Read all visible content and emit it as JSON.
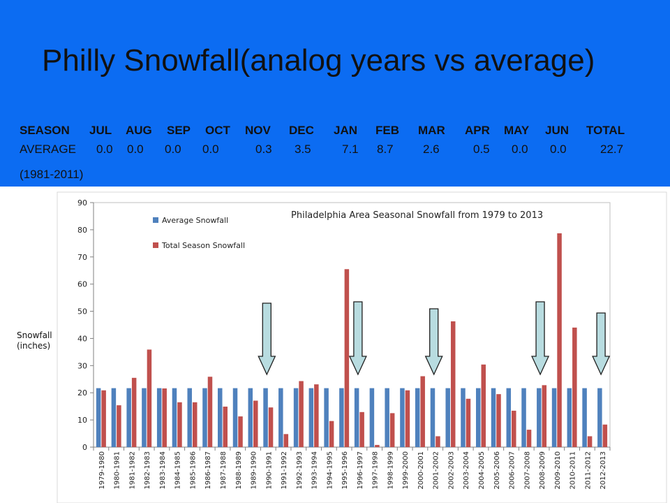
{
  "slide": {
    "title": "Philly Snowfall(analog years vs average)",
    "header_color": "#0c6cf2"
  },
  "monthly_table": {
    "columns": [
      "SEASON",
      "JUL",
      "AUG",
      "SEP",
      "OCT",
      "NOV",
      "DEC",
      "JAN",
      "FEB",
      "MAR",
      "APR",
      "MAY",
      "JUN",
      "TOTAL"
    ],
    "average_row": [
      "AVERAGE",
      "0.0",
      "0.0",
      "0.0",
      "0.0",
      "0.3",
      "3.5",
      "7.1",
      "8.7",
      "2.6",
      "0.5",
      "0.0",
      "0.0",
      "22.7"
    ],
    "period": "(1981-2011)"
  },
  "chart_data": {
    "type": "bar",
    "title": "Philadelphia Area Seasonal Snowfall from 1979 to 2013",
    "ylabel": "Snowfall (inches)",
    "ylabel_lines": [
      "Snowfall",
      "(inches)"
    ],
    "ylim": [
      0,
      90
    ],
    "yticks": [
      0,
      10,
      20,
      30,
      40,
      50,
      60,
      70,
      80,
      90
    ],
    "grid": false,
    "legend_position": "top-left",
    "categories": [
      "1979-1980",
      "1980-1981",
      "1981-1982",
      "1982-1983",
      "1983-1984",
      "1984-1985",
      "1985-1986",
      "1986-1987",
      "1987-1988",
      "1988-1989",
      "1989-1990",
      "1990-1991",
      "1991-1992",
      "1992-1993",
      "1993-1994",
      "1994-1995",
      "1995-1996",
      "1996-1997",
      "1997-1998",
      "1998-1999",
      "1999-2000",
      "2000-2001",
      "2001-2002",
      "2002-2003",
      "2003-2004",
      "2004-2005",
      "2005-2006",
      "2006-2007",
      "2007-2008",
      "2008-2009",
      "2009-2010",
      "2010-2011",
      "2011-2012",
      "2012-2013"
    ],
    "series": [
      {
        "name": "Average Snowfall",
        "color": "#4f81bd",
        "values": [
          21.7,
          21.7,
          21.7,
          21.7,
          21.7,
          21.7,
          21.7,
          21.7,
          21.7,
          21.7,
          21.7,
          21.7,
          21.7,
          21.7,
          21.7,
          21.7,
          21.7,
          21.7,
          21.7,
          21.7,
          21.7,
          21.7,
          21.7,
          21.7,
          21.7,
          21.7,
          21.7,
          21.7,
          21.7,
          21.7,
          21.7,
          21.7,
          21.7,
          21.7
        ]
      },
      {
        "name": "Total Season Snowfall",
        "color": "#c0504d",
        "values": [
          20.9,
          15.4,
          25.5,
          35.9,
          21.6,
          16.5,
          16.5,
          25.9,
          14.9,
          11.3,
          17.1,
          14.6,
          4.8,
          24.3,
          23.1,
          9.6,
          65.5,
          12.9,
          0.8,
          12.5,
          20.9,
          26.1,
          4.0,
          46.3,
          17.8,
          30.4,
          19.5,
          13.4,
          6.4,
          22.8,
          78.7,
          44.0,
          4.0,
          8.3
        ]
      }
    ],
    "annotations": {
      "type": "down-arrow",
      "color": "#b8dce0",
      "analog_seasons": [
        "1990-1991",
        "1996-1997",
        "2001-2002",
        "2008-2009",
        "2012-2013"
      ]
    }
  }
}
